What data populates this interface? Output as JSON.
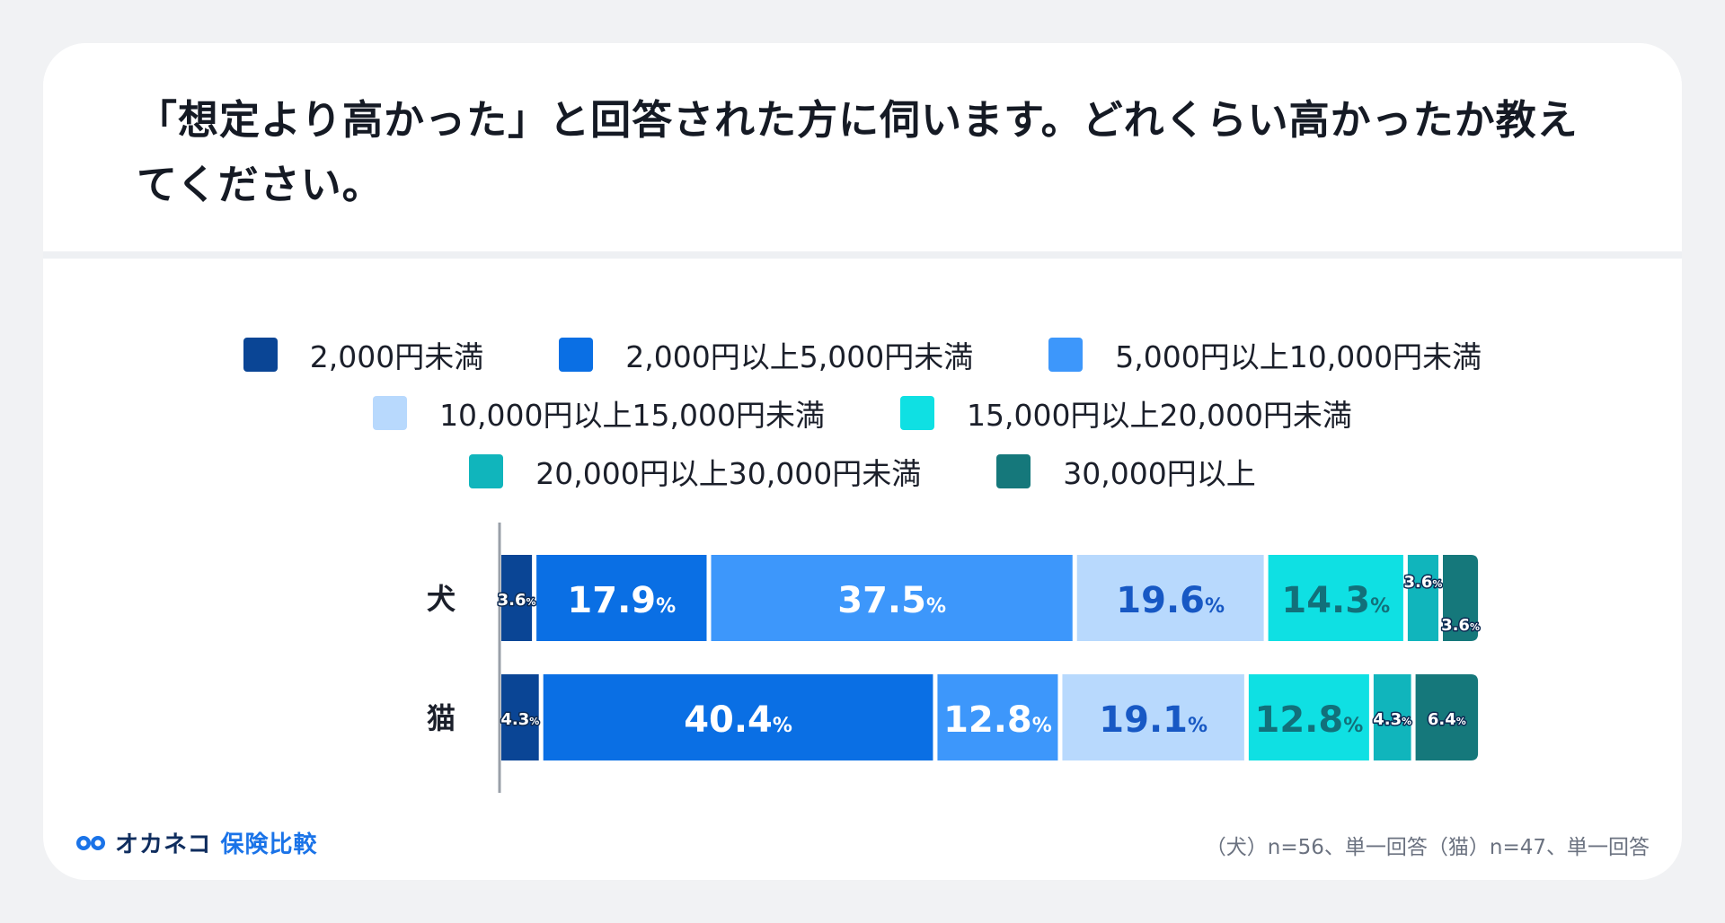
{
  "title": "「想定より高かった」と回答された方に伺います。どれくらい高かったか教えてください。",
  "legend": [
    {
      "label": "2,000円未満",
      "color": "#0a4595"
    },
    {
      "label": "2,000円以上5,000円未満",
      "color": "#0a6fe4"
    },
    {
      "label": "5,000円以上10,000円未満",
      "color": "#3d97fb"
    },
    {
      "label": "10,000円以上15,000円未満",
      "color": "#b8d9fd"
    },
    {
      "label": "15,000円以上20,000円未満",
      "color": "#0fe0e3"
    },
    {
      "label": "20,000円以上30,000円未満",
      "color": "#10b5bc"
    },
    {
      "label": "30,000円以上",
      "color": "#15787b"
    }
  ],
  "chart_data": {
    "type": "bar",
    "orientation": "horizontal-stacked-100",
    "categories": [
      "犬",
      "猫"
    ],
    "value_suffix": "%",
    "series": [
      {
        "name": "2,000円未満",
        "values": [
          3.6,
          4.3
        ]
      },
      {
        "name": "2,000円以上5,000円未満",
        "values": [
          17.9,
          40.4
        ]
      },
      {
        "name": "5,000円以上10,000円未満",
        "values": [
          37.5,
          12.8
        ]
      },
      {
        "name": "10,000円以上15,000円未満",
        "values": [
          19.6,
          19.1
        ]
      },
      {
        "name": "15,000円以上20,000円未満",
        "values": [
          14.3,
          12.8
        ]
      },
      {
        "name": "20,000円以上30,000円未満",
        "values": [
          3.6,
          4.3
        ]
      },
      {
        "name": "30,000円以上",
        "values": [
          3.6,
          6.4
        ]
      }
    ],
    "label_colors": [
      "#ffffff",
      "#ffffff",
      "#ffffff",
      "#1758c4",
      "#12707a",
      "#ffffff",
      "#ffffff"
    ],
    "grid": false,
    "legend_position": "top"
  },
  "brand": {
    "part1": "オカネコ",
    "part2": "保険比較"
  },
  "footnote": "（犬）n=56、単一回答（猫）n=47、単一回答"
}
